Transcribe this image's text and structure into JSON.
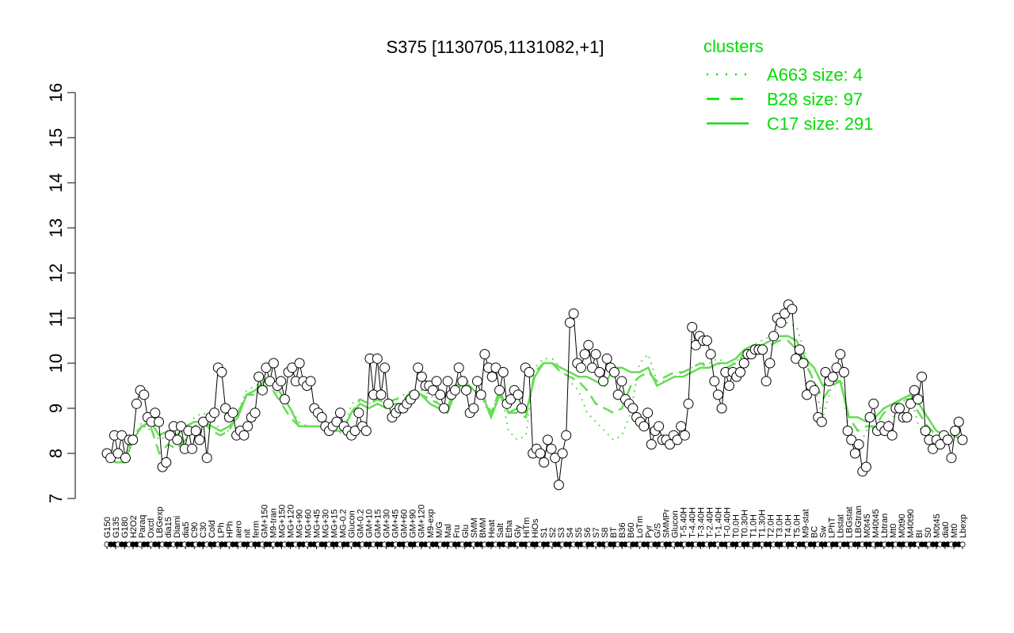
{
  "chart_data": {
    "type": "line",
    "title": "S375 [1130705,1131082,+1]",
    "xlabel": "",
    "ylabel": "",
    "ylim": [
      7,
      16
    ],
    "yticks": [
      7,
      8,
      9,
      10,
      11,
      12,
      13,
      14,
      15,
      16
    ],
    "xticks": [
      "G150",
      "G135",
      "G180",
      "H2O2",
      "Paraq",
      "Oxctl",
      "LBGexp",
      "dia15",
      "Diami",
      "dia5",
      "C90",
      "C30",
      "Cold",
      "LPh",
      "HPh",
      "aero",
      "nit",
      "ferm",
      "GM+150",
      "M9-tran",
      "MG+150",
      "MG+120",
      "MG+90",
      "MG+60",
      "MG+45",
      "MG+30",
      "MG+15",
      "MG-0.2",
      "Glucon",
      "GM-0.2",
      "GM+10",
      "GM+15",
      "GM+30",
      "GM+45",
      "GM+60",
      "GM+90",
      "GM+120",
      "M9-exp",
      "M/G",
      "Mal",
      "Fru",
      "Glu",
      "SMM",
      "BMM",
      "Heat",
      "Salt",
      "Etha",
      "Gly",
      "HiTm",
      "HiOs",
      "S1",
      "S2",
      "S3",
      "S4",
      "S5",
      "S6",
      "S7",
      "S8",
      "BT",
      "B36",
      "B60",
      "LoTm",
      "Pyr",
      "G/S",
      "SMMPr",
      "Glucon",
      "T-5.40H",
      "T-4.40H",
      "T-3.40H",
      "T-2.40H",
      "T-1.40H",
      "T-0.40H",
      "T0.0H",
      "T0.30H",
      "T1.0H",
      "T1.30H",
      "T2.0H",
      "T3.0H",
      "T4.0H",
      "T5.0H",
      "M9-stat",
      "BC",
      "Sw",
      "LPhT",
      "Lbstat",
      "LBGstat",
      "LBGtran",
      "M0t45",
      "M40t45",
      "Lbtran",
      "Mt0",
      "M0t90",
      "M40t90",
      "BI",
      "S0",
      "M0t45",
      "dia0",
      "Mt0",
      "Lbexp"
    ],
    "series": [
      {
        "name": "A663 size: 4",
        "style": "dotted",
        "values": [
          8.0,
          8.05,
          7.9,
          8.3,
          8.7,
          8.5,
          8.3,
          8.4,
          8.3,
          8.4,
          8.8,
          8.9,
          8.8,
          8.5,
          8.5,
          8.9,
          9.4,
          9.5,
          9.6,
          9.5,
          9.2,
          9.0,
          8.7,
          8.6,
          8.6,
          8.6,
          8.6,
          8.4,
          9.1,
          9.2,
          9.1,
          9.2,
          9.1,
          9.2,
          9.3,
          9.4,
          9.4,
          9.3,
          9.1,
          9.0,
          9.6,
          9.7,
          9.4,
          9.2,
          8.8,
          9.5,
          8.5,
          8.3,
          8.4,
          9.9,
          10.1,
          10.1,
          9.9,
          9.6,
          9.4,
          8.9,
          8.7,
          8.5,
          8.3,
          8.4,
          8.9,
          10.0,
          10.2,
          9.6,
          9.6,
          9.7,
          9.8,
          9.9,
          10.0,
          10.0,
          10.1,
          10.0,
          10.0,
          10.3,
          10.4,
          10.5,
          10.6,
          10.8,
          10.9,
          10.8,
          10.2,
          9.5,
          8.8,
          9.5,
          9.8,
          8.5,
          8.1,
          8.5,
          8.6,
          8.6,
          8.8,
          9.1,
          9.3,
          8.6,
          8.3,
          8.2,
          8.3,
          8.4,
          8.3
        ]
      },
      {
        "name": "B28 size: 97",
        "style": "dashed",
        "values": [
          7.9,
          7.8,
          7.8,
          8.4,
          8.6,
          8.6,
          8.0,
          8.2,
          8.1,
          8.3,
          8.6,
          8.7,
          8.5,
          8.4,
          8.5,
          8.9,
          9.3,
          9.3,
          9.5,
          9.4,
          9.1,
          8.8,
          8.6,
          8.6,
          8.6,
          8.6,
          8.6,
          8.5,
          8.9,
          9.2,
          9.1,
          9.2,
          9.1,
          9.2,
          9.2,
          9.4,
          9.3,
          9.2,
          9.1,
          9.0,
          9.5,
          9.6,
          9.4,
          9.3,
          8.9,
          9.4,
          8.9,
          8.9,
          8.8,
          9.8,
          10.0,
          10.0,
          9.8,
          9.7,
          9.6,
          9.4,
          9.1,
          9.0,
          8.9,
          9.0,
          9.5,
          9.7,
          9.8,
          9.6,
          9.7,
          9.8,
          9.8,
          9.9,
          10.0,
          9.9,
          10.0,
          9.9,
          10.0,
          10.2,
          10.3,
          10.4,
          10.4,
          10.5,
          10.5,
          10.3,
          10.0,
          9.6,
          9.2,
          9.5,
          9.6,
          8.8,
          8.5,
          8.6,
          8.6,
          8.9,
          9.0,
          9.2,
          9.2,
          8.9,
          8.6,
          8.4,
          8.4,
          8.4,
          8.3
        ]
      },
      {
        "name": "C17 size: 291",
        "style": "solid",
        "values": [
          8.0,
          7.8,
          7.8,
          8.3,
          8.6,
          8.7,
          8.4,
          8.5,
          8.4,
          8.6,
          8.7,
          8.7,
          8.6,
          8.5,
          8.6,
          8.8,
          9.3,
          9.4,
          9.6,
          9.6,
          9.3,
          9.0,
          8.6,
          8.6,
          8.6,
          8.6,
          8.5,
          8.5,
          8.9,
          9.1,
          9.0,
          9.1,
          9.0,
          9.1,
          9.1,
          9.3,
          9.3,
          9.1,
          9.0,
          8.9,
          9.4,
          9.6,
          9.4,
          9.3,
          8.8,
          9.3,
          8.9,
          9.0,
          8.9,
          9.7,
          10.0,
          10.0,
          9.9,
          9.8,
          9.7,
          9.7,
          9.6,
          9.5,
          9.9,
          9.9,
          9.8,
          9.8,
          9.9,
          9.5,
          9.6,
          9.7,
          9.7,
          9.8,
          9.9,
          9.9,
          10.0,
          10.0,
          10.1,
          10.3,
          10.4,
          10.4,
          10.5,
          10.6,
          10.6,
          10.5,
          10.1,
          9.9,
          9.5,
          9.6,
          9.6,
          8.8,
          8.8,
          8.7,
          8.8,
          9.0,
          9.1,
          9.2,
          9.3,
          9.1,
          8.8,
          8.5,
          8.4,
          8.4,
          8.3
        ]
      }
    ],
    "points": [
      8.0,
      7.9,
      8.4,
      8.0,
      8.4,
      7.9,
      8.3,
      8.3,
      9.1,
      9.4,
      9.3,
      8.8,
      8.7,
      8.9,
      8.7,
      7.7,
      7.8,
      8.4,
      8.6,
      8.3,
      8.6,
      8.1,
      8.5,
      8.1,
      8.5,
      8.3,
      8.7,
      7.9,
      8.8,
      8.9,
      9.9,
      9.8,
      9.0,
      8.8,
      8.9,
      8.4,
      8.5,
      8.4,
      8.6,
      8.8,
      8.9,
      9.7,
      9.4,
      9.9,
      9.6,
      10.0,
      9.5,
      9.6,
      9.2,
      9.8,
      9.9,
      9.6,
      10.0,
      9.6,
      9.5,
      9.6,
      9.0,
      8.9,
      8.8,
      8.6,
      8.5,
      8.6,
      8.7,
      8.9,
      8.6,
      8.5,
      8.4,
      8.5,
      8.9,
      8.6,
      8.5,
      10.1,
      9.3,
      10.1,
      9.3,
      9.9,
      9.1,
      8.8,
      8.9,
      9.0,
      9.0,
      9.1,
      9.2,
      9.3,
      9.9,
      9.7,
      9.5,
      9.5,
      9.4,
      9.6,
      9.3,
      9.0,
      9.6,
      9.3,
      9.4,
      9.9,
      9.6,
      9.4,
      8.9,
      9.0,
      9.6,
      9.3,
      10.2,
      9.9,
      9.7,
      9.9,
      9.4,
      9.8,
      9.1,
      9.2,
      9.4,
      9.3,
      9.0,
      9.9,
      9.8,
      8.0,
      8.1,
      8.0,
      7.8,
      8.3,
      8.1,
      7.9,
      7.3,
      8.0,
      8.4,
      10.9,
      11.1,
      10.0,
      9.9,
      10.2,
      10.4,
      9.9,
      10.2,
      9.8,
      9.6,
      10.1,
      9.9,
      9.8,
      9.3,
      9.6,
      9.2,
      9.1,
      9.0,
      8.8,
      8.7,
      8.6,
      8.9,
      8.2,
      8.5,
      8.6,
      8.3,
      8.3,
      8.2,
      8.4,
      8.3,
      8.6,
      8.4,
      9.1,
      10.8,
      10.4,
      10.6,
      10.5,
      10.5,
      10.2,
      9.6,
      9.3,
      9.0,
      9.8,
      9.5,
      9.8,
      9.7,
      9.8,
      10.0,
      10.2,
      10.2,
      10.3,
      10.3,
      10.3,
      9.6,
      10.0,
      10.6,
      11.0,
      10.9,
      11.1,
      11.3,
      11.2,
      10.1,
      10.3,
      10.0,
      9.3,
      9.5,
      9.4,
      8.8,
      8.7,
      9.8,
      9.6,
      9.7,
      9.9,
      10.2,
      9.8,
      8.5,
      8.3,
      8.0,
      8.2,
      7.6,
      7.7,
      8.8,
      9.1,
      8.5,
      8.6,
      8.5,
      8.6,
      8.4,
      9.0,
      9.0,
      8.8,
      8.8,
      9.1,
      9.4,
      9.2,
      9.7,
      8.5,
      8.3,
      8.1,
      8.3,
      8.2,
      8.4,
      8.3,
      7.9,
      8.5,
      8.7,
      8.3
    ]
  }
}
